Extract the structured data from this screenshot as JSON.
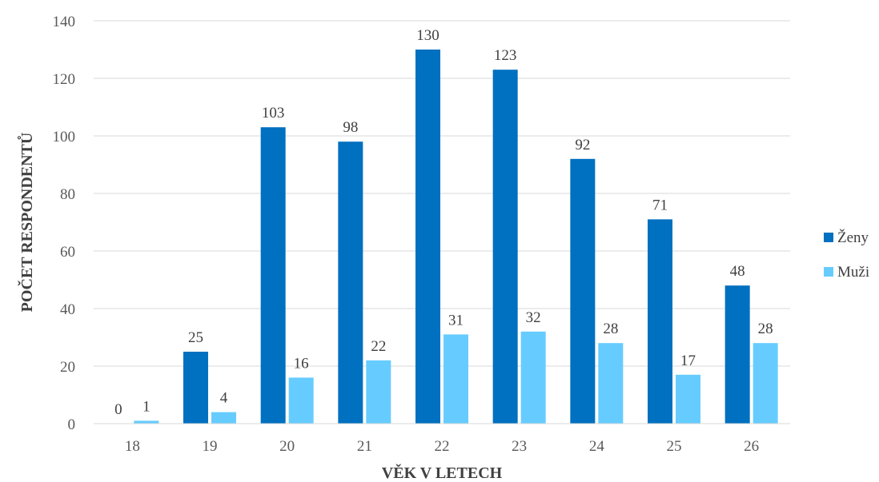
{
  "chart_data": {
    "type": "bar",
    "categories": [
      "18",
      "19",
      "20",
      "21",
      "22",
      "23",
      "24",
      "25",
      "26"
    ],
    "series": [
      {
        "name": "Ženy",
        "color": "#0070C0",
        "values": [
          0,
          25,
          103,
          98,
          130,
          123,
          92,
          71,
          48
        ]
      },
      {
        "name": "Muži",
        "color": "#66CCFF",
        "values": [
          1,
          4,
          16,
          22,
          31,
          32,
          28,
          17,
          28
        ]
      }
    ],
    "xlabel": "VĚK V LETECH",
    "ylabel": "POČET RESPONDENTŮ",
    "ylim": [
      0,
      140
    ],
    "yticks": [
      0,
      20,
      40,
      60,
      80,
      100,
      120,
      140
    ],
    "grid": true,
    "legend_position": "right",
    "data_labels": true
  }
}
